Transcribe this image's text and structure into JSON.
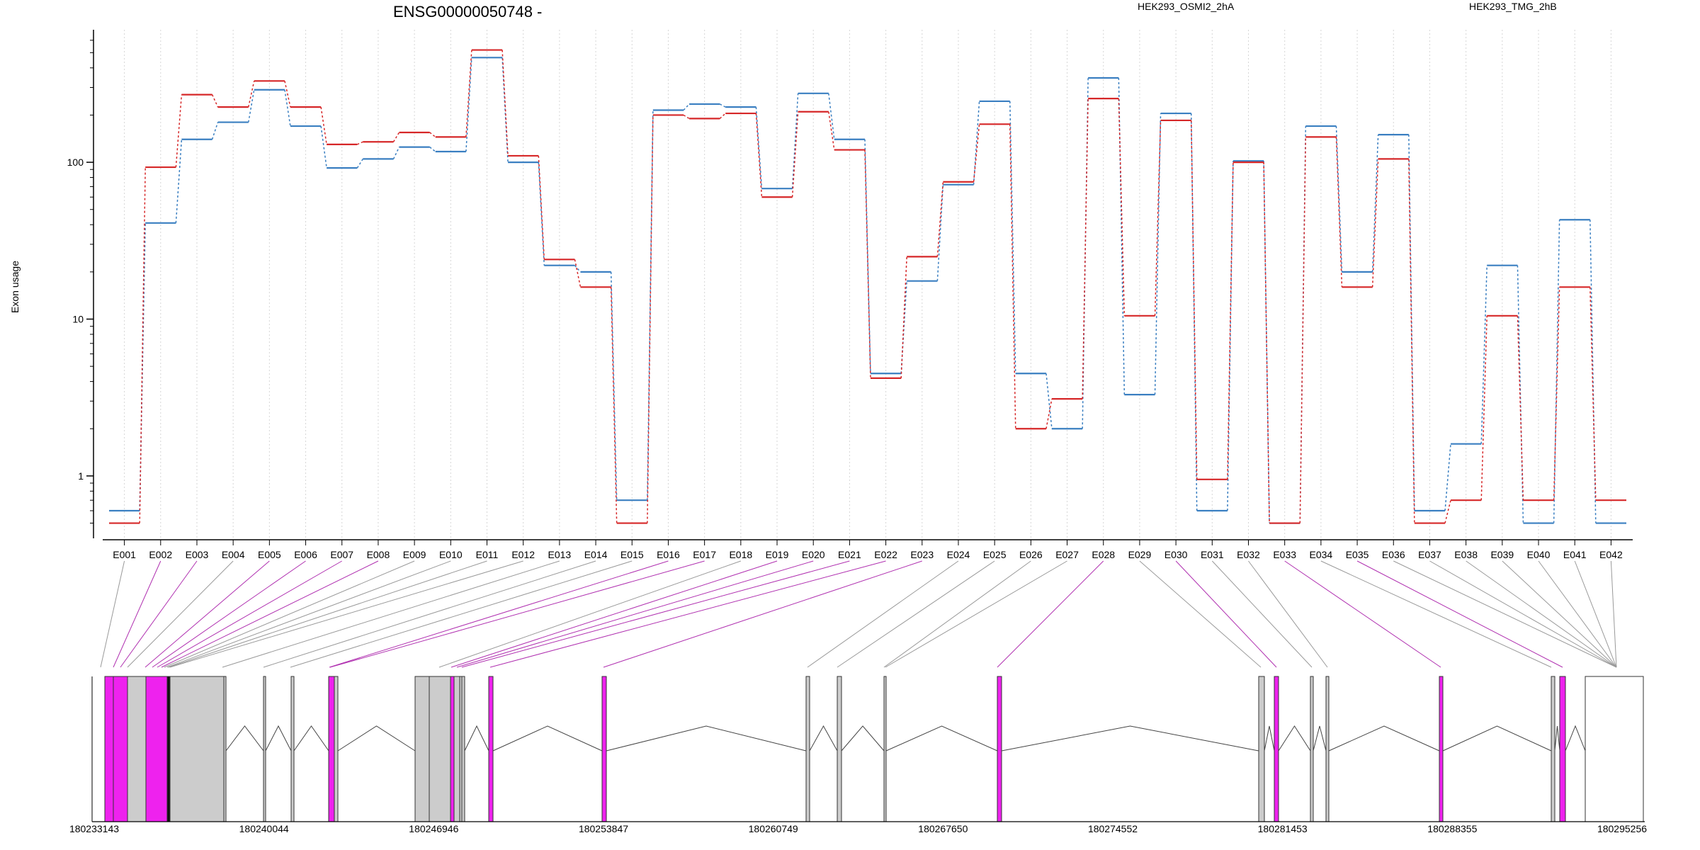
{
  "chart_data": {
    "type": "line",
    "title": "ENSG00000050748 -",
    "ylabel": "Exon usage",
    "yscale": "log",
    "ylim": [
      0.4,
      700
    ],
    "y_ticks": [
      1,
      10,
      100
    ],
    "y_tick_labels": [
      "1",
      "10",
      "100"
    ],
    "grid": "vertical dotted at each exon",
    "legend_placement": "top",
    "categories": [
      "E001",
      "E002",
      "E003",
      "E004",
      "E005",
      "E006",
      "E007",
      "E008",
      "E009",
      "E010",
      "E011",
      "E012",
      "E013",
      "E014",
      "E015",
      "E016",
      "E017",
      "E018",
      "E019",
      "E020",
      "E021",
      "E022",
      "E023",
      "E024",
      "E025",
      "E026",
      "E027",
      "E028",
      "E029",
      "E030",
      "E031",
      "E032",
      "E033",
      "E034",
      "E035",
      "E036",
      "E037",
      "E038",
      "E039",
      "E040",
      "E041",
      "E042"
    ],
    "series": [
      {
        "name": "HEK293_OSMI2_2hA",
        "color": "#d62728",
        "values": [
          0.5,
          93,
          270,
          225,
          330,
          225,
          130,
          135,
          155,
          145,
          520,
          110,
          24,
          16,
          0.5,
          200,
          190,
          205,
          60,
          210,
          120,
          4.2,
          25,
          75,
          175,
          2,
          3.1,
          255,
          10.5,
          185,
          0.95,
          100,
          0.5,
          145,
          16,
          105,
          0.5,
          0.7,
          10.5,
          0.7,
          16,
          0.7
        ]
      },
      {
        "name": "HEK293_TMG_2hB",
        "color": "#3a7fc1",
        "values": [
          0.6,
          41,
          140,
          180,
          290,
          170,
          92,
          105,
          125,
          117,
          465,
          100,
          22,
          20,
          0.7,
          215,
          235,
          225,
          68,
          275,
          140,
          4.5,
          17.5,
          72,
          245,
          4.5,
          2,
          345,
          3.3,
          205,
          0.6,
          102,
          0.5,
          170,
          20,
          150,
          0.6,
          1.6,
          22,
          0.5,
          43,
          0.5
        ]
      }
    ],
    "genomic_axis": {
      "tick_labels": [
        "180233143",
        "180240044",
        "180246946",
        "180253847",
        "180260749",
        "180267650",
        "180274552",
        "180281453",
        "180288355",
        "180295256"
      ]
    }
  }
}
